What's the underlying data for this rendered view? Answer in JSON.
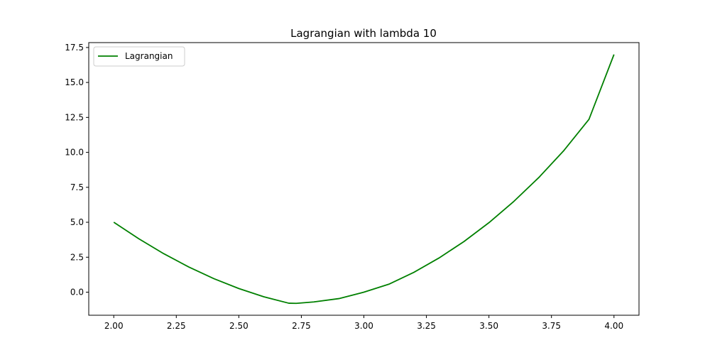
{
  "chart_data": {
    "type": "line",
    "title": "Lagrangian with lambda 10",
    "xlabel": "",
    "ylabel": "",
    "xlim": [
      1.9,
      4.1
    ],
    "ylim": [
      -1.65,
      17.85
    ],
    "x_ticks": [
      2.0,
      2.25,
      2.5,
      2.75,
      3.0,
      3.25,
      3.5,
      3.75,
      4.0
    ],
    "x_tick_labels": [
      "2.00",
      "2.25",
      "2.50",
      "2.75",
      "3.00",
      "3.25",
      "3.50",
      "3.75",
      "4.00"
    ],
    "y_ticks": [
      0.0,
      2.5,
      5.0,
      7.5,
      10.0,
      12.5,
      15.0,
      17.5
    ],
    "y_tick_labels": [
      "0.0",
      "2.5",
      "5.0",
      "7.5",
      "10.0",
      "12.5",
      "15.0",
      "17.5"
    ],
    "grid": false,
    "legend_position": "upper-left",
    "series": [
      {
        "name": "Lagrangian",
        "color": "#008000",
        "x": [
          2.0,
          2.1,
          2.2,
          2.3,
          2.4,
          2.5,
          2.6,
          2.7,
          2.73,
          2.8,
          2.9,
          3.0,
          3.1,
          3.2,
          3.3,
          3.4,
          3.5,
          3.6,
          3.7,
          3.8,
          3.9,
          4.0
        ],
        "y": [
          5.0,
          3.82,
          2.75,
          1.8,
          0.97,
          0.26,
          -0.33,
          -0.79,
          -0.8,
          -0.7,
          -0.46,
          0.0,
          0.57,
          1.42,
          2.44,
          3.62,
          4.97,
          6.5,
          8.21,
          10.14,
          12.36,
          17.0
        ]
      }
    ]
  }
}
